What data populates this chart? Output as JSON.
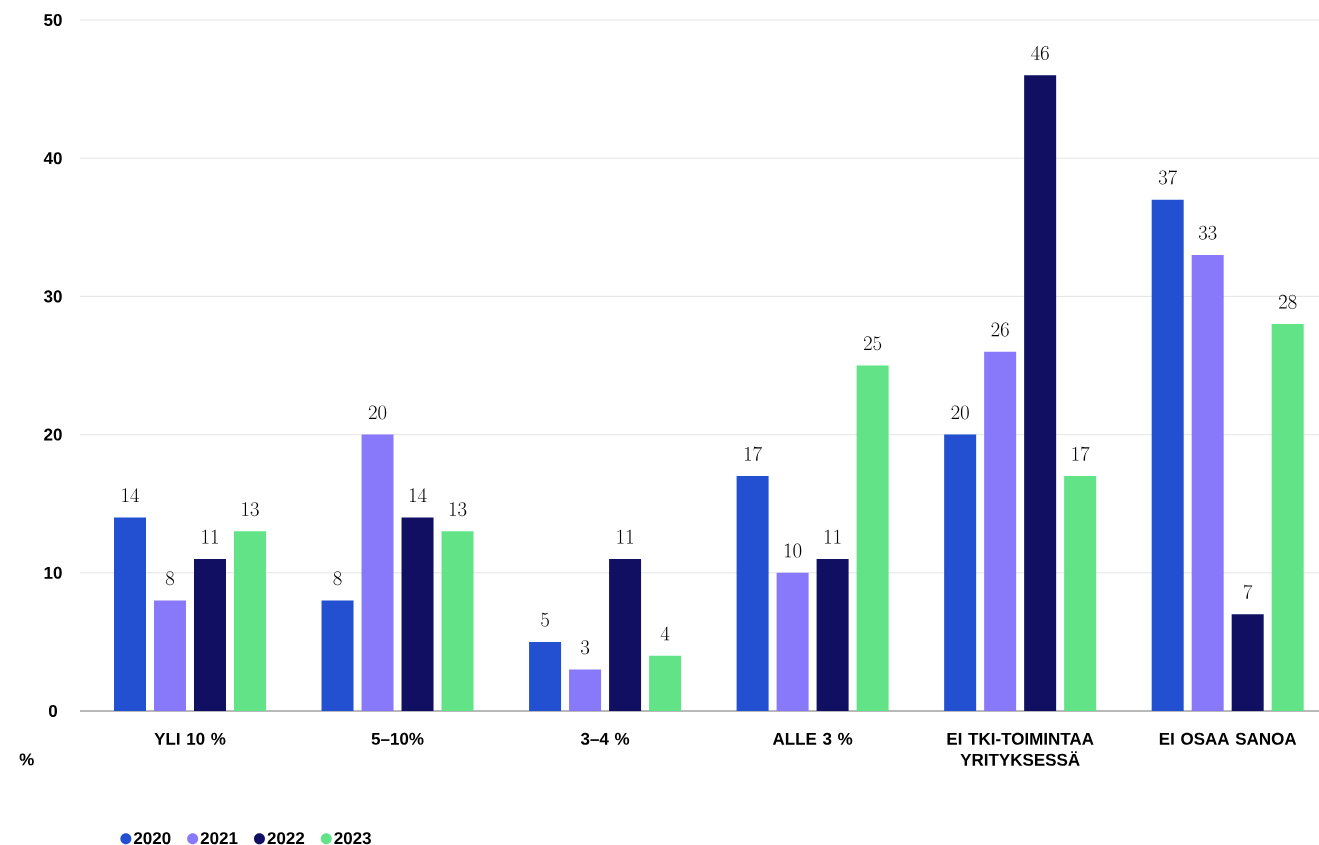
{
  "chart_data": {
    "type": "bar",
    "categories": [
      "YLI 10 %",
      "5–10%",
      "3–4 %",
      "ALLE 3 %",
      "EI TKI-TOIMINTAA YRITYKSESSÄ",
      "EI OSAA SANOA"
    ],
    "series": [
      {
        "name": "2020",
        "color": "#2350d0",
        "values": [
          14,
          8,
          5,
          17,
          20,
          37
        ]
      },
      {
        "name": "2021",
        "color": "#8878fa",
        "values": [
          8,
          20,
          3,
          10,
          26,
          33
        ]
      },
      {
        "name": "2022",
        "color": "#100f62",
        "values": [
          11,
          14,
          11,
          11,
          46,
          7
        ]
      },
      {
        "name": "2023",
        "color": "#62e387",
        "values": [
          13,
          13,
          4,
          25,
          17,
          28
        ]
      }
    ],
    "ylabel": "%",
    "ylim": [
      0,
      50
    ],
    "yticks": [
      0,
      10,
      20,
      30,
      40,
      50
    ],
    "grid": "y",
    "legend": "bottom left",
    "data_labels": true
  }
}
